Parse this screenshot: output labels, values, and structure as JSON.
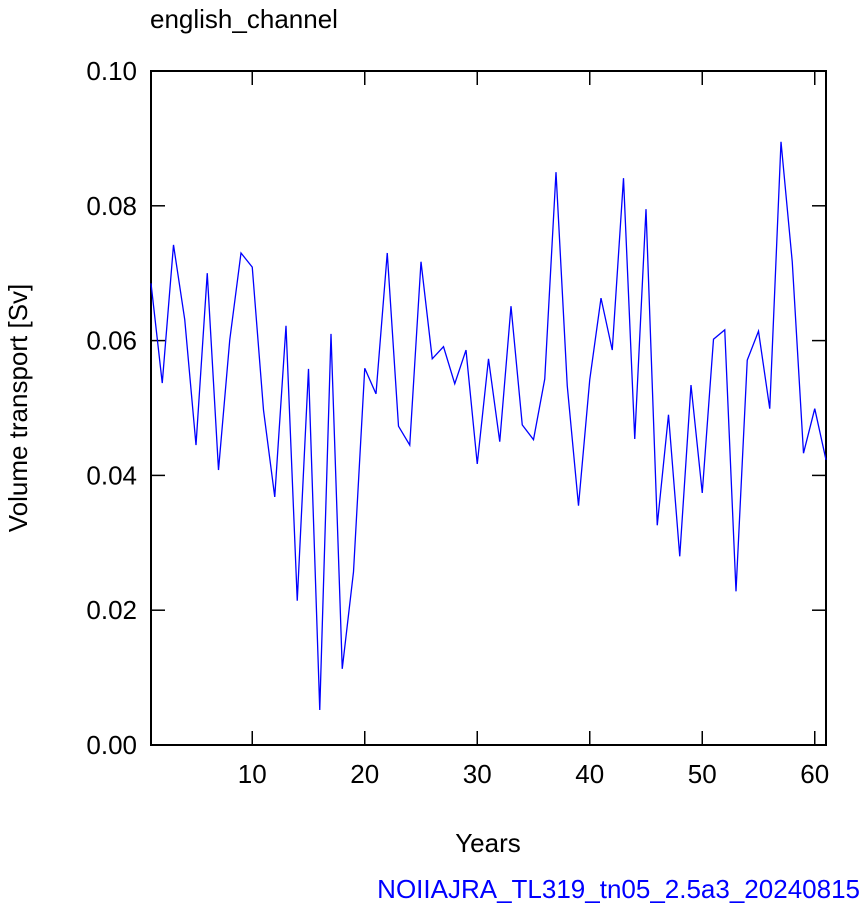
{
  "chart_data": {
    "type": "line",
    "title": "english_channel",
    "xlabel": "Years",
    "ylabel": "Volume transport [Sv]",
    "footnote": "NOIIAJRA_TL319_tn05_2.5a3_20240815",
    "x": [
      1,
      2,
      3,
      4,
      5,
      6,
      7,
      8,
      9,
      10,
      11,
      12,
      13,
      14,
      15,
      16,
      17,
      18,
      19,
      20,
      21,
      22,
      23,
      24,
      25,
      26,
      27,
      28,
      29,
      30,
      31,
      32,
      33,
      34,
      35,
      36,
      37,
      38,
      39,
      40,
      41,
      42,
      43,
      44,
      45,
      46,
      47,
      48,
      49,
      50,
      51,
      52,
      53,
      54,
      55,
      56,
      57,
      58,
      59,
      60,
      61
    ],
    "series": [
      {
        "name": "english_channel",
        "color": "#0000ff",
        "values": [
          0.0685,
          0.0537,
          0.0742,
          0.0631,
          0.0445,
          0.07,
          0.0408,
          0.0601,
          0.073,
          0.0709,
          0.0497,
          0.0368,
          0.0622,
          0.0214,
          0.0558,
          0.0052,
          0.061,
          0.0113,
          0.0257,
          0.0559,
          0.0521,
          0.073,
          0.0473,
          0.0445,
          0.0717,
          0.0573,
          0.0591,
          0.0536,
          0.0586,
          0.0417,
          0.0573,
          0.045,
          0.0651,
          0.0475,
          0.0453,
          0.0543,
          0.085,
          0.0533,
          0.0355,
          0.0542,
          0.0663,
          0.0586,
          0.0841,
          0.0454,
          0.0795,
          0.0326,
          0.049,
          0.028,
          0.0534,
          0.0374,
          0.0602,
          0.0616,
          0.0228,
          0.0571,
          0.0614,
          0.0499,
          0.0895,
          0.0717,
          0.0433,
          0.0499,
          0.0423
        ]
      }
    ],
    "xlim": [
      1,
      61
    ],
    "ylim": [
      0,
      0.1
    ],
    "xticks": [
      10,
      20,
      30,
      40,
      50,
      60
    ],
    "yticks": [
      {
        "value": 0,
        "label": "0.00"
      },
      {
        "value": 0.02,
        "label": "0.02"
      },
      {
        "value": 0.04,
        "label": "0.04"
      },
      {
        "value": 0.06,
        "label": "0.06"
      },
      {
        "value": 0.08,
        "label": "0.08"
      },
      {
        "value": 0.1,
        "label": "0.10"
      }
    ]
  }
}
